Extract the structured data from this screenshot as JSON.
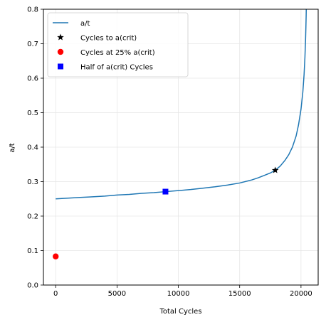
{
  "chart_data": {
    "type": "line",
    "title": "",
    "xlabel": "Total Cycles",
    "ylabel": "a/t",
    "xlim": [
      -1000,
      21400
    ],
    "ylim": [
      0,
      0.8
    ],
    "xticks": [
      0,
      5000,
      10000,
      15000,
      20000
    ],
    "yticks": [
      0.0,
      0.1,
      0.2,
      0.3,
      0.4,
      0.5,
      0.6,
      0.7,
      0.8
    ],
    "grid": true,
    "legend_position": "top-left",
    "series": [
      {
        "name": "a/t",
        "kind": "line",
        "color": "#1f77b4",
        "x": [
          0,
          1000,
          2000,
          3000,
          4000,
          5000,
          6000,
          7000,
          8000,
          9000,
          10000,
          11000,
          12000,
          13000,
          14000,
          15000,
          16000,
          16500,
          17000,
          17500,
          17900,
          18300,
          18700,
          19000,
          19300,
          19600,
          19800,
          20000,
          20150,
          20250,
          20320,
          20370,
          20400,
          20420,
          20430
        ],
        "y": [
          0.25,
          0.252,
          0.254,
          0.256,
          0.258,
          0.261,
          0.263,
          0.266,
          0.268,
          0.271,
          0.274,
          0.277,
          0.281,
          0.285,
          0.29,
          0.296,
          0.305,
          0.311,
          0.318,
          0.325,
          0.333,
          0.345,
          0.362,
          0.378,
          0.4,
          0.432,
          0.465,
          0.51,
          0.56,
          0.61,
          0.66,
          0.71,
          0.75,
          0.78,
          0.8
        ]
      },
      {
        "name": "Cycles to a(crit)",
        "kind": "marker",
        "marker": "star",
        "color": "#000000",
        "x": [
          17900
        ],
        "y": [
          0.333
        ]
      },
      {
        "name": "Cycles at 25% a(crit)",
        "kind": "marker",
        "marker": "circle",
        "color": "#ff0000",
        "x": [
          0
        ],
        "y": [
          0.083
        ]
      },
      {
        "name": "Half of a(crit) Cycles",
        "kind": "marker",
        "marker": "square",
        "color": "#0000ff",
        "x": [
          8950
        ],
        "y": [
          0.271
        ]
      }
    ]
  }
}
